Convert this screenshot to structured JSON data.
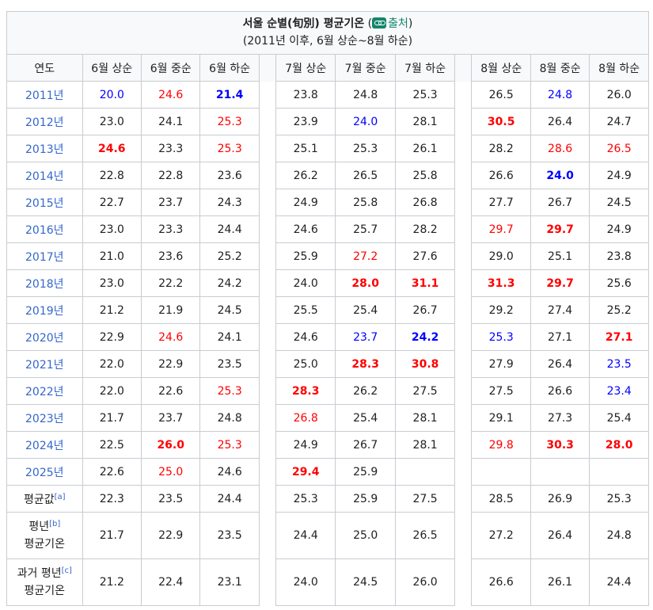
{
  "caption": {
    "title": "서울 순별(旬別) 평균기온",
    "open_paren": " (",
    "source_link": "출처",
    "close_paren": ")",
    "subtitle": "(2011년 이후, 6월 상순~8월 하순)",
    "source_icon": "link-icon"
  },
  "columns": {
    "year_header": "연도",
    "june": [
      "6월 상순",
      "6월 중순",
      "6월 하순"
    ],
    "july": [
      "7월 상순",
      "7월 중순",
      "7월 하순"
    ],
    "august": [
      "8월 상순",
      "8월 중순",
      "8월 하순"
    ]
  },
  "colors": {
    "blue": "#0000ff",
    "red": "#ff0000",
    "link": "#3366cc",
    "source": "#14866d"
  },
  "rows": [
    {
      "year": "2011년",
      "cells": [
        {
          "v": "20.0",
          "c": "blue",
          "b": false
        },
        {
          "v": "24.6",
          "c": "red",
          "b": false
        },
        {
          "v": "21.4",
          "c": "blue",
          "b": true
        },
        {
          "v": "23.8",
          "c": "",
          "b": false
        },
        {
          "v": "24.8",
          "c": "",
          "b": false
        },
        {
          "v": "25.3",
          "c": "",
          "b": false
        },
        {
          "v": "26.5",
          "c": "",
          "b": false
        },
        {
          "v": "24.8",
          "c": "blue",
          "b": false
        },
        {
          "v": "26.0",
          "c": "",
          "b": false
        }
      ]
    },
    {
      "year": "2012년",
      "cells": [
        {
          "v": "23.0",
          "c": "",
          "b": false
        },
        {
          "v": "24.1",
          "c": "",
          "b": false
        },
        {
          "v": "25.3",
          "c": "red",
          "b": false
        },
        {
          "v": "23.9",
          "c": "",
          "b": false
        },
        {
          "v": "24.0",
          "c": "blue",
          "b": false
        },
        {
          "v": "28.1",
          "c": "",
          "b": false
        },
        {
          "v": "30.5",
          "c": "red",
          "b": true
        },
        {
          "v": "26.4",
          "c": "",
          "b": false
        },
        {
          "v": "24.7",
          "c": "",
          "b": false
        }
      ]
    },
    {
      "year": "2013년",
      "cells": [
        {
          "v": "24.6",
          "c": "red",
          "b": true
        },
        {
          "v": "23.3",
          "c": "",
          "b": false
        },
        {
          "v": "25.3",
          "c": "red",
          "b": false
        },
        {
          "v": "25.1",
          "c": "",
          "b": false
        },
        {
          "v": "25.3",
          "c": "",
          "b": false
        },
        {
          "v": "26.1",
          "c": "",
          "b": false
        },
        {
          "v": "28.2",
          "c": "",
          "b": false
        },
        {
          "v": "28.6",
          "c": "red",
          "b": false
        },
        {
          "v": "26.5",
          "c": "red",
          "b": false
        }
      ]
    },
    {
      "year": "2014년",
      "cells": [
        {
          "v": "22.8",
          "c": "",
          "b": false
        },
        {
          "v": "22.8",
          "c": "",
          "b": false
        },
        {
          "v": "23.6",
          "c": "",
          "b": false
        },
        {
          "v": "26.2",
          "c": "",
          "b": false
        },
        {
          "v": "26.5",
          "c": "",
          "b": false
        },
        {
          "v": "25.8",
          "c": "",
          "b": false
        },
        {
          "v": "26.6",
          "c": "",
          "b": false
        },
        {
          "v": "24.0",
          "c": "blue",
          "b": true
        },
        {
          "v": "24.9",
          "c": "",
          "b": false
        }
      ]
    },
    {
      "year": "2015년",
      "cells": [
        {
          "v": "22.7",
          "c": "",
          "b": false
        },
        {
          "v": "23.7",
          "c": "",
          "b": false
        },
        {
          "v": "24.3",
          "c": "",
          "b": false
        },
        {
          "v": "24.9",
          "c": "",
          "b": false
        },
        {
          "v": "25.8",
          "c": "",
          "b": false
        },
        {
          "v": "26.8",
          "c": "",
          "b": false
        },
        {
          "v": "27.7",
          "c": "",
          "b": false
        },
        {
          "v": "26.7",
          "c": "",
          "b": false
        },
        {
          "v": "24.5",
          "c": "",
          "b": false
        }
      ]
    },
    {
      "year": "2016년",
      "cells": [
        {
          "v": "23.0",
          "c": "",
          "b": false
        },
        {
          "v": "23.3",
          "c": "",
          "b": false
        },
        {
          "v": "24.4",
          "c": "",
          "b": false
        },
        {
          "v": "24.6",
          "c": "",
          "b": false
        },
        {
          "v": "25.7",
          "c": "",
          "b": false
        },
        {
          "v": "28.2",
          "c": "",
          "b": false
        },
        {
          "v": "29.7",
          "c": "red",
          "b": false
        },
        {
          "v": "29.7",
          "c": "red",
          "b": true
        },
        {
          "v": "24.9",
          "c": "",
          "b": false
        }
      ]
    },
    {
      "year": "2017년",
      "cells": [
        {
          "v": "21.0",
          "c": "",
          "b": false
        },
        {
          "v": "23.6",
          "c": "",
          "b": false
        },
        {
          "v": "25.2",
          "c": "",
          "b": false
        },
        {
          "v": "25.9",
          "c": "",
          "b": false
        },
        {
          "v": "27.2",
          "c": "red",
          "b": false
        },
        {
          "v": "27.6",
          "c": "",
          "b": false
        },
        {
          "v": "29.0",
          "c": "",
          "b": false
        },
        {
          "v": "25.1",
          "c": "",
          "b": false
        },
        {
          "v": "23.8",
          "c": "",
          "b": false
        }
      ]
    },
    {
      "year": "2018년",
      "cells": [
        {
          "v": "23.0",
          "c": "",
          "b": false
        },
        {
          "v": "22.2",
          "c": "",
          "b": false
        },
        {
          "v": "24.2",
          "c": "",
          "b": false
        },
        {
          "v": "24.0",
          "c": "",
          "b": false
        },
        {
          "v": "28.0",
          "c": "red",
          "b": true
        },
        {
          "v": "31.1",
          "c": "red",
          "b": true
        },
        {
          "v": "31.3",
          "c": "red",
          "b": true
        },
        {
          "v": "29.7",
          "c": "red",
          "b": true
        },
        {
          "v": "25.6",
          "c": "",
          "b": false
        }
      ]
    },
    {
      "year": "2019년",
      "cells": [
        {
          "v": "21.2",
          "c": "",
          "b": false
        },
        {
          "v": "21.9",
          "c": "",
          "b": false
        },
        {
          "v": "24.5",
          "c": "",
          "b": false
        },
        {
          "v": "25.5",
          "c": "",
          "b": false
        },
        {
          "v": "25.4",
          "c": "",
          "b": false
        },
        {
          "v": "26.7",
          "c": "",
          "b": false
        },
        {
          "v": "29.2",
          "c": "",
          "b": false
        },
        {
          "v": "27.4",
          "c": "",
          "b": false
        },
        {
          "v": "25.2",
          "c": "",
          "b": false
        }
      ]
    },
    {
      "year": "2020년",
      "cells": [
        {
          "v": "22.9",
          "c": "",
          "b": false
        },
        {
          "v": "24.6",
          "c": "red",
          "b": false
        },
        {
          "v": "24.1",
          "c": "",
          "b": false
        },
        {
          "v": "24.6",
          "c": "",
          "b": false
        },
        {
          "v": "23.7",
          "c": "blue",
          "b": false
        },
        {
          "v": "24.2",
          "c": "blue",
          "b": true
        },
        {
          "v": "25.3",
          "c": "blue",
          "b": false
        },
        {
          "v": "27.1",
          "c": "",
          "b": false
        },
        {
          "v": "27.1",
          "c": "red",
          "b": true
        }
      ]
    },
    {
      "year": "2021년",
      "cells": [
        {
          "v": "22.0",
          "c": "",
          "b": false
        },
        {
          "v": "22.9",
          "c": "",
          "b": false
        },
        {
          "v": "23.5",
          "c": "",
          "b": false
        },
        {
          "v": "25.0",
          "c": "",
          "b": false
        },
        {
          "v": "28.3",
          "c": "red",
          "b": true
        },
        {
          "v": "30.8",
          "c": "red",
          "b": true
        },
        {
          "v": "27.9",
          "c": "",
          "b": false
        },
        {
          "v": "26.4",
          "c": "",
          "b": false
        },
        {
          "v": "23.5",
          "c": "blue",
          "b": false
        }
      ]
    },
    {
      "year": "2022년",
      "cells": [
        {
          "v": "22.0",
          "c": "",
          "b": false
        },
        {
          "v": "22.6",
          "c": "",
          "b": false
        },
        {
          "v": "25.3",
          "c": "red",
          "b": false
        },
        {
          "v": "28.3",
          "c": "red",
          "b": true
        },
        {
          "v": "26.2",
          "c": "",
          "b": false
        },
        {
          "v": "27.5",
          "c": "",
          "b": false
        },
        {
          "v": "27.5",
          "c": "",
          "b": false
        },
        {
          "v": "26.6",
          "c": "",
          "b": false
        },
        {
          "v": "23.4",
          "c": "blue",
          "b": false
        }
      ]
    },
    {
      "year": "2023년",
      "cells": [
        {
          "v": "21.7",
          "c": "",
          "b": false
        },
        {
          "v": "23.7",
          "c": "",
          "b": false
        },
        {
          "v": "24.8",
          "c": "",
          "b": false
        },
        {
          "v": "26.8",
          "c": "red",
          "b": false
        },
        {
          "v": "25.4",
          "c": "",
          "b": false
        },
        {
          "v": "28.1",
          "c": "",
          "b": false
        },
        {
          "v": "29.1",
          "c": "",
          "b": false
        },
        {
          "v": "27.3",
          "c": "",
          "b": false
        },
        {
          "v": "25.4",
          "c": "",
          "b": false
        }
      ]
    },
    {
      "year": "2024년",
      "cells": [
        {
          "v": "22.5",
          "c": "",
          "b": false
        },
        {
          "v": "26.0",
          "c": "red",
          "b": true
        },
        {
          "v": "25.3",
          "c": "red",
          "b": false
        },
        {
          "v": "24.9",
          "c": "",
          "b": false
        },
        {
          "v": "26.7",
          "c": "",
          "b": false
        },
        {
          "v": "28.1",
          "c": "",
          "b": false
        },
        {
          "v": "29.8",
          "c": "red",
          "b": false
        },
        {
          "v": "30.3",
          "c": "red",
          "b": true
        },
        {
          "v": "28.0",
          "c": "red",
          "b": true
        }
      ]
    },
    {
      "year": "2025년",
      "cells": [
        {
          "v": "22.6",
          "c": "",
          "b": false
        },
        {
          "v": "25.0",
          "c": "red",
          "b": false
        },
        {
          "v": "24.6",
          "c": "",
          "b": false
        },
        {
          "v": "29.4",
          "c": "red",
          "b": true
        },
        {
          "v": "25.9",
          "c": "",
          "b": false
        },
        {
          "v": "",
          "c": "",
          "b": false
        },
        {
          "v": "",
          "c": "",
          "b": false
        },
        {
          "v": "",
          "c": "",
          "b": false
        },
        {
          "v": "",
          "c": "",
          "b": false
        }
      ]
    }
  ],
  "summary": [
    {
      "line1": "평균값",
      "note": "[a]",
      "line2": "",
      "tall": false,
      "cells": [
        "22.3",
        "23.5",
        "24.4",
        "25.3",
        "25.9",
        "27.5",
        "28.5",
        "26.9",
        "25.3"
      ]
    },
    {
      "line1": "평년",
      "note": "[b]",
      "line2": "평균기온",
      "tall": true,
      "cells": [
        "21.7",
        "22.9",
        "23.5",
        "24.4",
        "25.0",
        "26.5",
        "27.2",
        "26.4",
        "24.8"
      ]
    },
    {
      "line1": "과거 평년",
      "note": "[c]",
      "line2": "평균기온",
      "tall": true,
      "cells": [
        "21.2",
        "22.4",
        "23.1",
        "24.0",
        "24.5",
        "26.0",
        "26.6",
        "26.1",
        "24.4"
      ]
    }
  ]
}
